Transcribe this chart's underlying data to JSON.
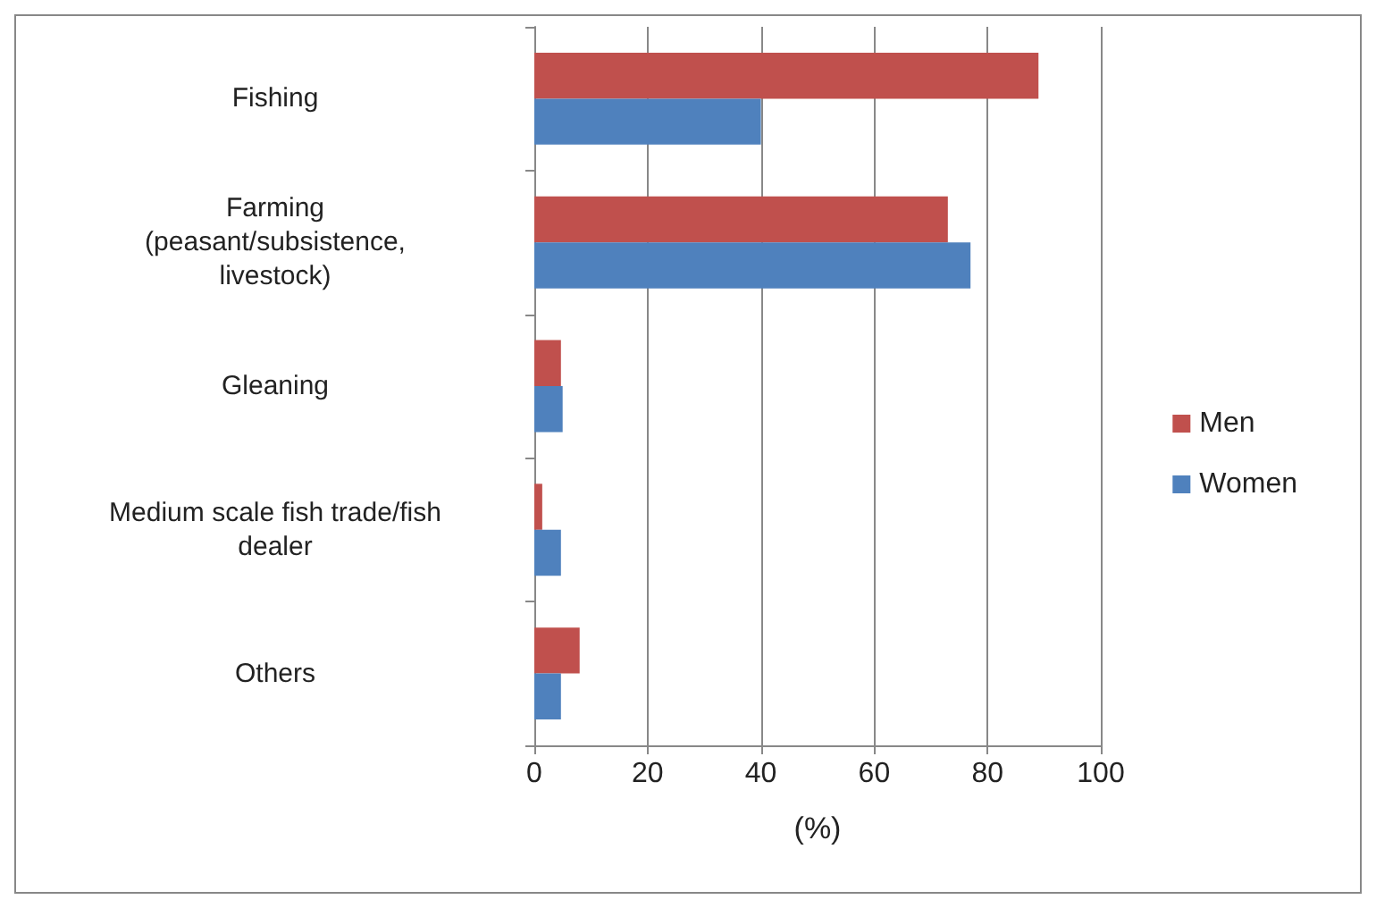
{
  "chart_data": {
    "type": "bar",
    "orientation": "horizontal",
    "xlabel": "(%)",
    "categories": [
      "Fishing",
      "Farming\n(peasant/subsistence,\nlivestock)",
      "Gleaning",
      "Medium scale fish trade/fish\ndealer",
      "Others"
    ],
    "series": [
      {
        "name": "Men",
        "color": "#c0504d",
        "values": [
          89,
          73,
          4.7,
          1.4,
          8
        ]
      },
      {
        "name": "Women",
        "color": "#4f81bd",
        "values": [
          40,
          77,
          5,
          4.7,
          4.7
        ]
      }
    ],
    "xlim": [
      0,
      100
    ],
    "xticks": [
      0,
      20,
      40,
      60,
      80,
      100
    ],
    "grid": "x",
    "legend": "right"
  }
}
